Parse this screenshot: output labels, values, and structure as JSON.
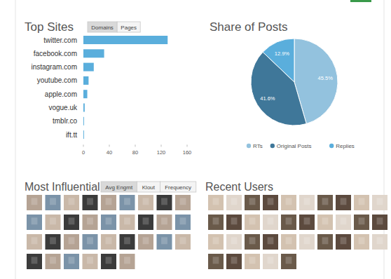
{
  "chart_data": [
    {
      "type": "bar",
      "title": "Top Sites",
      "orientation": "horizontal",
      "categories": [
        "twitter.com",
        "facebook.com",
        "instagram.com",
        "youtube.com",
        "apple.com",
        "vogue.uk",
        "tmblr.co",
        "ift.tt"
      ],
      "values": [
        130,
        32,
        16,
        8,
        6,
        2,
        1,
        1
      ],
      "color": "#5aaedc",
      "xlim": [
        0,
        160
      ],
      "xticks": [
        0,
        40,
        80,
        120,
        160
      ],
      "grid": false
    },
    {
      "type": "pie",
      "title": "Share of Posts",
      "categories": [
        "RTs",
        "Original Posts",
        "Replies"
      ],
      "values": [
        45.5,
        41.6,
        12.9
      ],
      "value_labels": [
        "45.5%",
        "41.6%",
        "12.9%"
      ],
      "colors": [
        "#93c2de",
        "#3f7799",
        "#5aaedc"
      ],
      "data_labels": true,
      "legend": "bottom"
    }
  ],
  "tabs": {
    "top_sites": [
      "Domains",
      "Pages"
    ],
    "most_influential": [
      "Avg Engmt",
      "Klout",
      "Frequency"
    ]
  },
  "sections": {
    "most_influential": {
      "title": "Most Influential"
    },
    "recent_users": {
      "title": "Recent Users"
    }
  }
}
